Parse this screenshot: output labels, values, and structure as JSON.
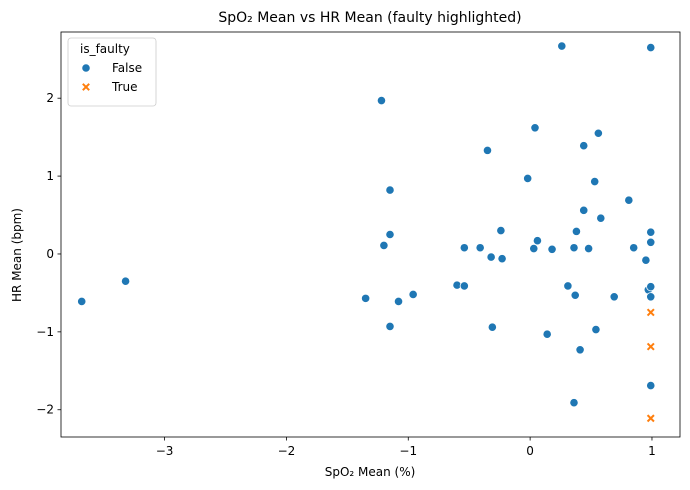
{
  "chart_data": {
    "type": "scatter",
    "title": "SpO₂ Mean vs HR Mean (faulty highlighted)",
    "xlabel": "SpO₂ Mean (%)",
    "ylabel": "HR Mean (bpm)",
    "xlim": [
      -3.85,
      1.23
    ],
    "ylim": [
      -2.35,
      2.85
    ],
    "xticks": [
      -3,
      -2,
      -1,
      0,
      1
    ],
    "yticks": [
      -2,
      -1,
      0,
      1,
      2
    ],
    "grid": false,
    "legend": {
      "title": "is_faulty",
      "placement": "top-left",
      "entries": [
        {
          "label": "False",
          "marker": "circle",
          "color": "#1f77b4"
        },
        {
          "label": "True",
          "marker": "x",
          "color": "#ff7f0e"
        }
      ]
    },
    "series": [
      {
        "name": "False",
        "color": "#1f77b4",
        "marker": "circle",
        "points": [
          [
            -3.68,
            -0.61
          ],
          [
            -3.32,
            -0.35
          ],
          [
            -1.35,
            -0.57
          ],
          [
            -1.22,
            1.97
          ],
          [
            -1.2,
            0.11
          ],
          [
            -1.15,
            0.82
          ],
          [
            -1.15,
            0.25
          ],
          [
            -1.15,
            -0.93
          ],
          [
            -1.08,
            -0.61
          ],
          [
            -0.96,
            -0.52
          ],
          [
            -0.6,
            -0.4
          ],
          [
            -0.54,
            0.08
          ],
          [
            -0.54,
            -0.41
          ],
          [
            -0.41,
            0.08
          ],
          [
            -0.35,
            1.33
          ],
          [
            -0.32,
            -0.04
          ],
          [
            -0.31,
            -0.94
          ],
          [
            -0.24,
            0.3
          ],
          [
            -0.23,
            -0.06
          ],
          [
            -0.02,
            0.97
          ],
          [
            0.03,
            0.07
          ],
          [
            0.04,
            1.62
          ],
          [
            0.06,
            0.17
          ],
          [
            0.14,
            -1.03
          ],
          [
            0.18,
            0.06
          ],
          [
            0.26,
            2.67
          ],
          [
            0.31,
            -0.41
          ],
          [
            0.36,
            0.08
          ],
          [
            0.37,
            -0.53
          ],
          [
            0.38,
            0.29
          ],
          [
            0.36,
            -1.91
          ],
          [
            0.41,
            -1.23
          ],
          [
            0.44,
            1.39
          ],
          [
            0.44,
            0.56
          ],
          [
            0.48,
            0.07
          ],
          [
            0.53,
            0.93
          ],
          [
            0.54,
            -0.97
          ],
          [
            0.56,
            1.55
          ],
          [
            0.58,
            0.46
          ],
          [
            0.69,
            -0.55
          ],
          [
            0.81,
            0.69
          ],
          [
            0.85,
            0.08
          ],
          [
            0.95,
            -0.08
          ],
          [
            0.97,
            -0.46
          ],
          [
            0.99,
            2.65
          ],
          [
            0.99,
            0.28
          ],
          [
            0.99,
            0.15
          ],
          [
            0.99,
            -0.42
          ],
          [
            0.99,
            -0.55
          ],
          [
            0.99,
            -1.69
          ]
        ]
      },
      {
        "name": "True",
        "color": "#ff7f0e",
        "marker": "x",
        "points": [
          [
            0.99,
            -0.75
          ],
          [
            0.99,
            -1.19
          ],
          [
            0.99,
            -2.11
          ]
        ]
      }
    ]
  }
}
